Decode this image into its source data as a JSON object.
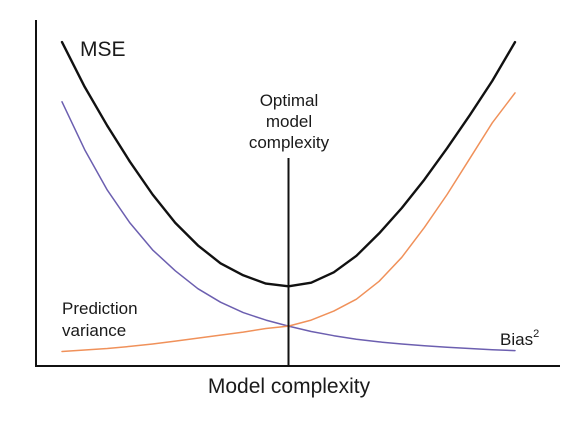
{
  "chart_data": {
    "type": "line",
    "xlabel": "Model complexity",
    "ylabel": "",
    "xlim": [
      0,
      10
    ],
    "ylim": [
      0,
      10
    ],
    "ticks": "none",
    "grid": false,
    "legend": "none",
    "series": [
      {
        "name": "MSE",
        "color": "#111111",
        "x": [
          0.0,
          0.5,
          1.0,
          1.5,
          2.0,
          2.5,
          3.0,
          3.5,
          4.0,
          4.5,
          5.0,
          5.5,
          6.0,
          6.5,
          7.0,
          7.5,
          8.0,
          8.5,
          9.0,
          9.5,
          10.0
        ],
        "y": [
          10.5,
          9.0,
          7.7,
          6.5,
          5.4,
          4.45,
          3.7,
          3.1,
          2.7,
          2.42,
          2.33,
          2.45,
          2.8,
          3.35,
          4.1,
          4.95,
          5.9,
          6.95,
          8.05,
          9.2,
          10.5
        ]
      },
      {
        "name": "Prediction variance",
        "color": "#6c5fb0",
        "x": [
          0.0,
          0.5,
          1.0,
          1.5,
          2.0,
          2.5,
          3.0,
          3.5,
          4.0,
          4.5,
          5.0,
          5.5,
          6.0,
          6.5,
          7.0,
          7.5,
          8.0,
          8.5,
          9.0,
          9.5,
          10.0
        ],
        "y": [
          8.5,
          6.9,
          5.55,
          4.45,
          3.55,
          2.85,
          2.25,
          1.8,
          1.45,
          1.2,
          1.0,
          0.82,
          0.68,
          0.56,
          0.47,
          0.4,
          0.34,
          0.29,
          0.25,
          0.21,
          0.18
        ]
      },
      {
        "name": "Bias²",
        "color": "#f0915a",
        "x": [
          0.0,
          0.5,
          1.0,
          1.5,
          2.0,
          2.5,
          3.0,
          3.5,
          4.0,
          4.5,
          5.0,
          5.5,
          6.0,
          6.5,
          7.0,
          7.5,
          8.0,
          8.5,
          9.0,
          9.5,
          10.0
        ],
        "y": [
          0.15,
          0.2,
          0.25,
          0.32,
          0.4,
          0.5,
          0.6,
          0.7,
          0.8,
          0.92,
          1.0,
          1.2,
          1.5,
          1.9,
          2.5,
          3.3,
          4.3,
          5.4,
          6.6,
          7.8,
          8.8
        ]
      }
    ],
    "annotations": [
      {
        "text": "MSE",
        "series": "MSE"
      },
      {
        "text": "Prediction",
        "series": "Prediction variance"
      },
      {
        "text": "variance",
        "series": "Prediction variance"
      },
      {
        "text": "Bias",
        "superscript": "2",
        "series": "Bias²"
      },
      {
        "text": "Optimal",
        "marker": "optimum"
      },
      {
        "text": "model",
        "marker": "optimum"
      },
      {
        "text": "complexity",
        "marker": "optimum"
      }
    ],
    "optimum": {
      "x": 5.0,
      "note": "vertical line at minimum of MSE"
    }
  }
}
